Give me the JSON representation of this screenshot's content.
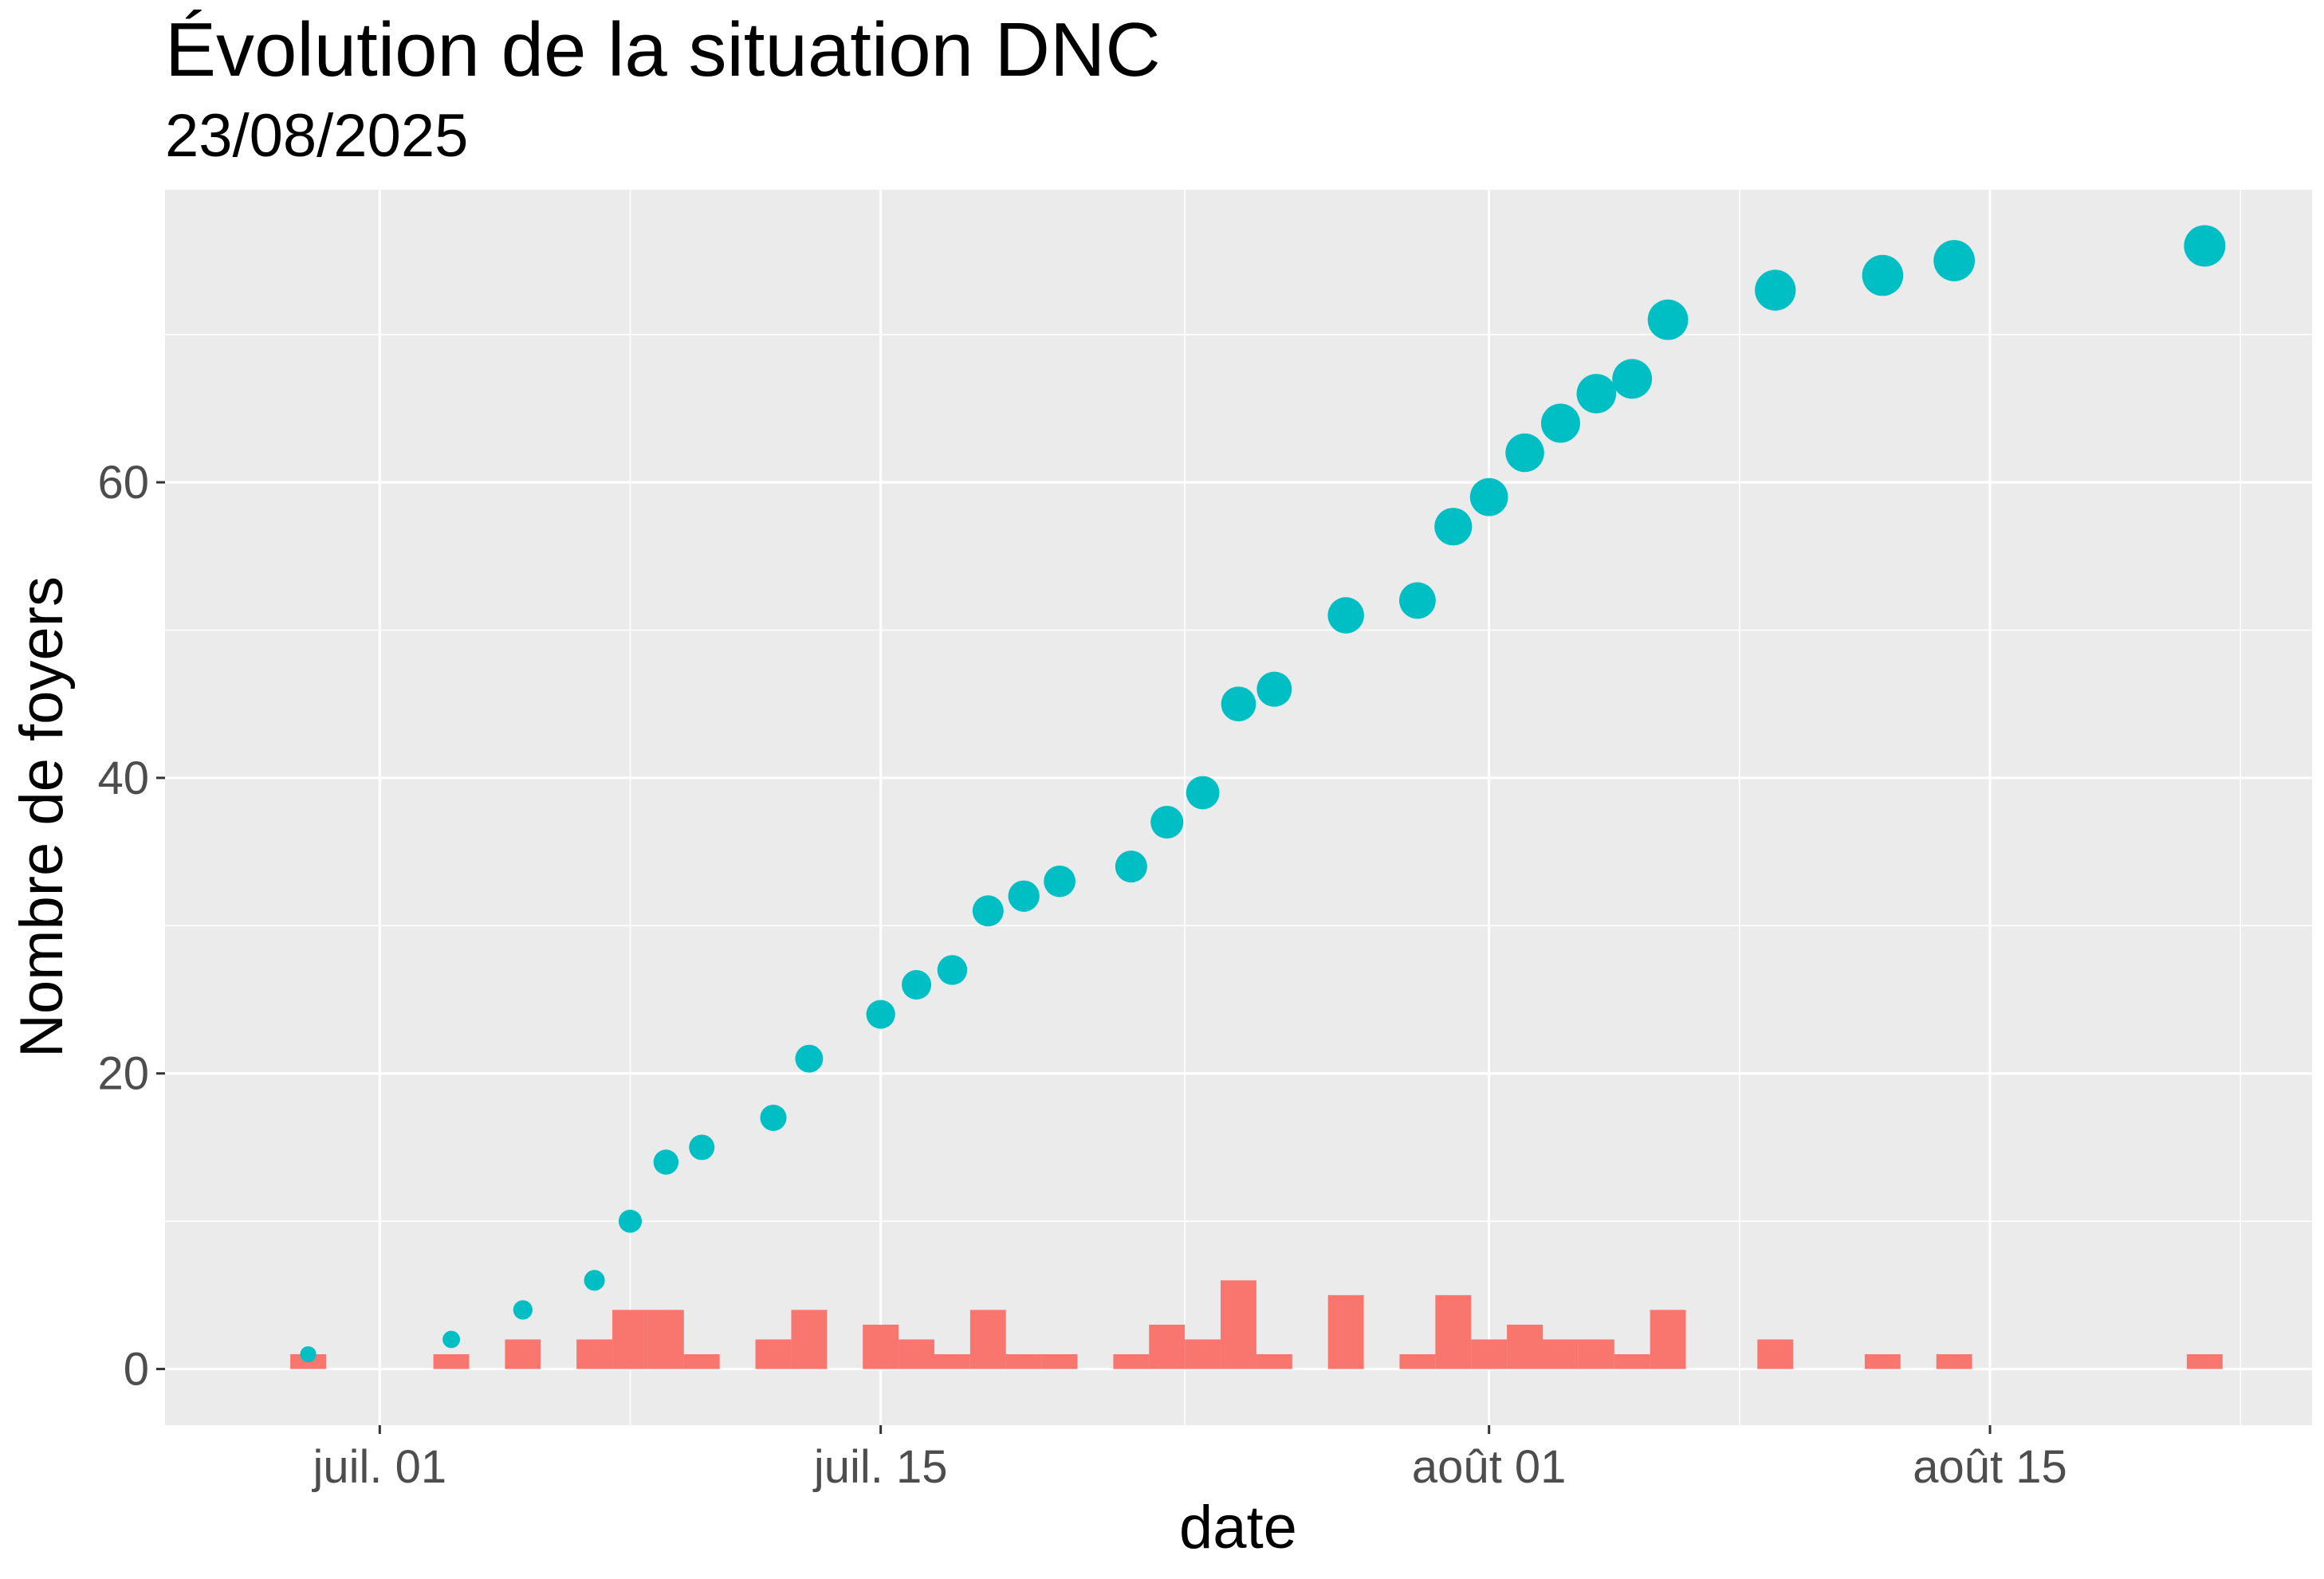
{
  "chart_data": {
    "type": "scatter",
    "title": "Évolution de la situation DNC",
    "subtitle": "23/08/2025",
    "xlabel": "date",
    "ylabel": "Nombre de foyers",
    "x_ticks": [
      {
        "date": "2025-07-01",
        "label": "juil. 01"
      },
      {
        "date": "2025-07-15",
        "label": "juil. 15"
      },
      {
        "date": "2025-08-01",
        "label": "août 01"
      },
      {
        "date": "2025-08-15",
        "label": "août 15"
      }
    ],
    "xlim": [
      "2025-06-25",
      "2025-08-24"
    ],
    "y_ticks": [
      0,
      20,
      40,
      60
    ],
    "ylim": [
      -3.8,
      79.8
    ],
    "grid": true,
    "legend": "none",
    "colors": {
      "bars": "#F8766D",
      "points": "#00BFC4",
      "panel": "#EBEBEB",
      "grid": "#FFFFFF"
    },
    "series": [
      {
        "kind": "bar",
        "values": [
          {
            "x": "2025-06-29",
            "y": 1
          },
          {
            "x": "2025-07-03",
            "y": 1
          },
          {
            "x": "2025-07-05",
            "y": 2
          },
          {
            "x": "2025-07-07",
            "y": 2
          },
          {
            "x": "2025-07-08",
            "y": 4
          },
          {
            "x": "2025-07-09",
            "y": 4
          },
          {
            "x": "2025-07-10",
            "y": 1
          },
          {
            "x": "2025-07-12",
            "y": 2
          },
          {
            "x": "2025-07-13",
            "y": 4
          },
          {
            "x": "2025-07-15",
            "y": 3
          },
          {
            "x": "2025-07-16",
            "y": 2
          },
          {
            "x": "2025-07-17",
            "y": 1
          },
          {
            "x": "2025-07-18",
            "y": 4
          },
          {
            "x": "2025-07-19",
            "y": 1
          },
          {
            "x": "2025-07-20",
            "y": 1
          },
          {
            "x": "2025-07-22",
            "y": 1
          },
          {
            "x": "2025-07-23",
            "y": 3
          },
          {
            "x": "2025-07-24",
            "y": 2
          },
          {
            "x": "2025-07-25",
            "y": 6
          },
          {
            "x": "2025-07-26",
            "y": 1
          },
          {
            "x": "2025-07-28",
            "y": 5
          },
          {
            "x": "2025-07-30",
            "y": 1
          },
          {
            "x": "2025-07-31",
            "y": 5
          },
          {
            "x": "2025-08-01",
            "y": 2
          },
          {
            "x": "2025-08-02",
            "y": 3
          },
          {
            "x": "2025-08-03",
            "y": 2
          },
          {
            "x": "2025-08-04",
            "y": 2
          },
          {
            "x": "2025-08-05",
            "y": 1
          },
          {
            "x": "2025-08-06",
            "y": 4
          },
          {
            "x": "2025-08-09",
            "y": 2
          },
          {
            "x": "2025-08-12",
            "y": 1
          },
          {
            "x": "2025-08-14",
            "y": 1
          },
          {
            "x": "2025-08-21",
            "y": 1
          }
        ]
      },
      {
        "kind": "point",
        "values": [
          {
            "x": "2025-06-29",
            "y": 1
          },
          {
            "x": "2025-07-03",
            "y": 2
          },
          {
            "x": "2025-07-05",
            "y": 4
          },
          {
            "x": "2025-07-07",
            "y": 6
          },
          {
            "x": "2025-07-08",
            "y": 10
          },
          {
            "x": "2025-07-09",
            "y": 14
          },
          {
            "x": "2025-07-10",
            "y": 15
          },
          {
            "x": "2025-07-12",
            "y": 17
          },
          {
            "x": "2025-07-13",
            "y": 21
          },
          {
            "x": "2025-07-15",
            "y": 24
          },
          {
            "x": "2025-07-16",
            "y": 26
          },
          {
            "x": "2025-07-17",
            "y": 27
          },
          {
            "x": "2025-07-18",
            "y": 31
          },
          {
            "x": "2025-07-19",
            "y": 32
          },
          {
            "x": "2025-07-20",
            "y": 33
          },
          {
            "x": "2025-07-22",
            "y": 34
          },
          {
            "x": "2025-07-23",
            "y": 37
          },
          {
            "x": "2025-07-24",
            "y": 39
          },
          {
            "x": "2025-07-25",
            "y": 45
          },
          {
            "x": "2025-07-26",
            "y": 46
          },
          {
            "x": "2025-07-28",
            "y": 51
          },
          {
            "x": "2025-07-30",
            "y": 52
          },
          {
            "x": "2025-07-31",
            "y": 57
          },
          {
            "x": "2025-08-01",
            "y": 59
          },
          {
            "x": "2025-08-02",
            "y": 62
          },
          {
            "x": "2025-08-03",
            "y": 64
          },
          {
            "x": "2025-08-04",
            "y": 66
          },
          {
            "x": "2025-08-05",
            "y": 67
          },
          {
            "x": "2025-08-06",
            "y": 71
          },
          {
            "x": "2025-08-09",
            "y": 73
          },
          {
            "x": "2025-08-12",
            "y": 74
          },
          {
            "x": "2025-08-14",
            "y": 75
          },
          {
            "x": "2025-08-21",
            "y": 76
          }
        ]
      }
    ]
  }
}
